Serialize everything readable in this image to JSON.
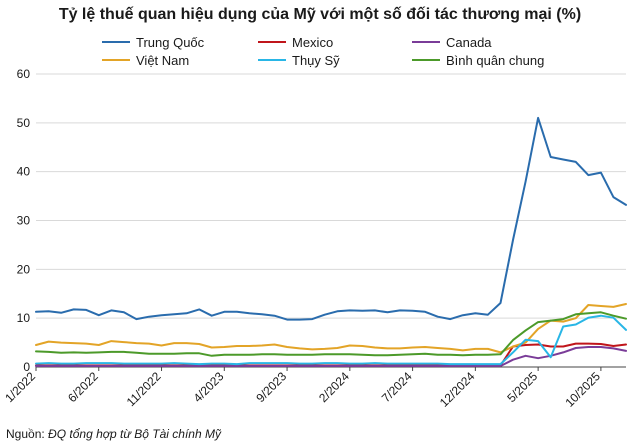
{
  "chart_data": {
    "type": "line",
    "title": "Tỷ lệ thuế quan hiệu dụng của Mỹ với một số đối tác thương mại (%)",
    "xlabel": "",
    "ylabel": "",
    "ylim": [
      0,
      60
    ],
    "yticks": [
      "0",
      "10",
      "20",
      "30",
      "40",
      "50",
      "60"
    ],
    "xtick_labels": [
      "1/2022",
      "6/2022",
      "11/2022",
      "4/2023",
      "9/2023",
      "2/2024",
      "7/2024",
      "12/2024",
      "5/2025",
      "10/2025"
    ],
    "grid": "horizontal",
    "legend_position": "top",
    "x": [
      "1/2022",
      "2/2022",
      "3/2022",
      "4/2022",
      "5/2022",
      "6/2022",
      "7/2022",
      "8/2022",
      "9/2022",
      "10/2022",
      "11/2022",
      "12/2022",
      "1/2023",
      "2/2023",
      "3/2023",
      "4/2023",
      "5/2023",
      "6/2023",
      "7/2023",
      "8/2023",
      "9/2023",
      "10/2023",
      "11/2023",
      "12/2023",
      "1/2024",
      "2/2024",
      "3/2024",
      "4/2024",
      "5/2024",
      "6/2024",
      "7/2024",
      "8/2024",
      "9/2024",
      "10/2024",
      "11/2024",
      "12/2024",
      "1/2025",
      "2/2025",
      "3/2025",
      "4/2025",
      "5/2025",
      "6/2025",
      "7/2025",
      "8/2025",
      "9/2025",
      "10/2025",
      "11/2025",
      "12/2025"
    ],
    "series": [
      {
        "name": "Trung Quốc",
        "color": "#2a6cad",
        "values": [
          11.3,
          11.4,
          11.1,
          11.8,
          11.7,
          10.6,
          11.6,
          11.2,
          9.8,
          10.3,
          10.6,
          10.8,
          11.0,
          11.8,
          10.5,
          11.3,
          11.3,
          11.0,
          10.8,
          10.5,
          9.7,
          9.7,
          9.8,
          10.7,
          11.4,
          11.6,
          11.5,
          11.6,
          11.2,
          11.6,
          11.5,
          11.3,
          10.3,
          9.8,
          10.6,
          11.0,
          10.7,
          13.1,
          26.0,
          38.0,
          51.0,
          43.0,
          42.5,
          42.0,
          39.3,
          39.8,
          34.8,
          33.2
        ]
      },
      {
        "name": "Mexico",
        "color": "#c0151b",
        "values": [
          0.3,
          0.3,
          0.3,
          0.3,
          0.3,
          0.3,
          0.3,
          0.3,
          0.3,
          0.3,
          0.3,
          0.3,
          0.3,
          0.3,
          0.3,
          0.3,
          0.3,
          0.3,
          0.3,
          0.3,
          0.3,
          0.3,
          0.3,
          0.3,
          0.3,
          0.3,
          0.3,
          0.3,
          0.3,
          0.3,
          0.3,
          0.3,
          0.3,
          0.3,
          0.3,
          0.3,
          0.3,
          0.3,
          4.2,
          4.5,
          4.6,
          4.2,
          4.2,
          4.8,
          4.8,
          4.7,
          4.3,
          4.6
        ]
      },
      {
        "name": "Canada",
        "color": "#7a3c98",
        "values": [
          0.2,
          0.2,
          0.2,
          0.2,
          0.2,
          0.2,
          0.2,
          0.2,
          0.2,
          0.2,
          0.2,
          0.2,
          0.2,
          0.2,
          0.2,
          0.2,
          0.2,
          0.2,
          0.2,
          0.2,
          0.2,
          0.2,
          0.2,
          0.2,
          0.2,
          0.2,
          0.2,
          0.2,
          0.2,
          0.2,
          0.2,
          0.2,
          0.2,
          0.2,
          0.2,
          0.2,
          0.2,
          0.2,
          1.5,
          2.3,
          1.8,
          2.3,
          3.0,
          3.9,
          4.1,
          4.1,
          3.8,
          3.3
        ]
      },
      {
        "name": "Việt Nam",
        "color": "#e3a427",
        "values": [
          4.5,
          5.2,
          5.0,
          4.9,
          4.8,
          4.5,
          5.3,
          5.1,
          4.9,
          4.8,
          4.4,
          4.9,
          4.9,
          4.7,
          4.0,
          4.1,
          4.3,
          4.3,
          4.4,
          4.6,
          4.1,
          3.8,
          3.6,
          3.7,
          3.9,
          4.4,
          4.3,
          4.0,
          3.8,
          3.8,
          4.0,
          4.1,
          3.9,
          3.7,
          3.4,
          3.7,
          3.7,
          3.0,
          4.2,
          5.0,
          7.8,
          9.5,
          9.3,
          10.0,
          12.7,
          12.5,
          12.3,
          12.9
        ]
      },
      {
        "name": "Thụy Sỹ",
        "color": "#29b6e6",
        "values": [
          0.7,
          0.8,
          0.7,
          0.7,
          0.8,
          0.8,
          0.8,
          0.7,
          0.7,
          0.7,
          0.7,
          0.8,
          0.7,
          0.6,
          0.7,
          0.7,
          0.6,
          0.8,
          0.8,
          0.8,
          0.8,
          0.7,
          0.7,
          0.8,
          0.8,
          0.7,
          0.7,
          0.8,
          0.7,
          0.7,
          0.7,
          0.7,
          0.7,
          0.6,
          0.6,
          0.6,
          0.6,
          0.6,
          3.0,
          5.6,
          5.3,
          2.0,
          8.3,
          8.7,
          10.1,
          10.5,
          10.1,
          7.6
        ]
      },
      {
        "name": "Bình quân chung",
        "color": "#4c9a2a",
        "values": [
          3.2,
          3.1,
          2.9,
          3.0,
          2.9,
          3.0,
          3.1,
          3.1,
          2.9,
          2.7,
          2.7,
          2.7,
          2.8,
          2.8,
          2.3,
          2.5,
          2.5,
          2.5,
          2.6,
          2.6,
          2.5,
          2.5,
          2.5,
          2.6,
          2.6,
          2.6,
          2.5,
          2.4,
          2.4,
          2.5,
          2.6,
          2.7,
          2.5,
          2.5,
          2.4,
          2.5,
          2.5,
          2.6,
          5.5,
          7.5,
          9.2,
          9.5,
          9.8,
          10.8,
          11.0,
          11.2,
          10.5,
          9.9
        ]
      }
    ]
  },
  "source": {
    "prefix": "Nguồn:",
    "text": "ĐQ tổng hợp từ Bộ Tài chính Mỹ"
  }
}
